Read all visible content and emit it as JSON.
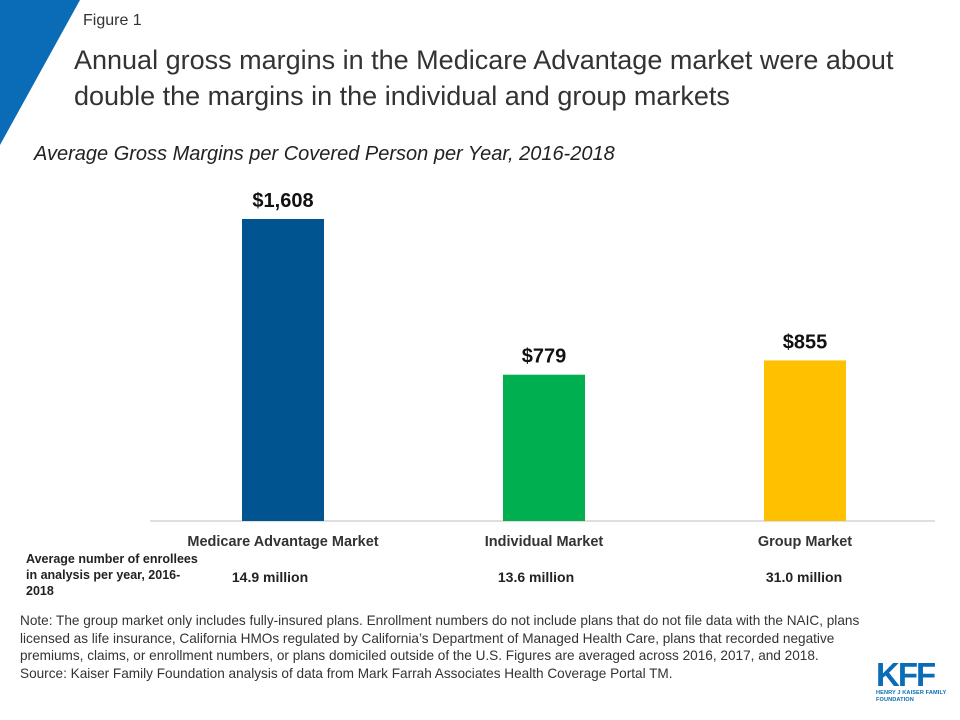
{
  "figure_label": "Figure 1",
  "title": "Annual gross margins in the Medicare Advantage market were about double the margins in the individual and group markets",
  "colors": {
    "accent": "#0a6cb6",
    "medicare": "#00548f",
    "individual": "#00b050",
    "group": "#ffc000"
  },
  "chart_data": {
    "type": "bar",
    "title": "Average Gross Margins per Covered Person per Year, 2016-2018",
    "categories": [
      "Medicare Advantage Market",
      "Individual Market",
      "Group Market"
    ],
    "values": [
      1608,
      779,
      855
    ],
    "value_labels": [
      "$1,608",
      "$779",
      "$855"
    ],
    "colors": [
      "#00548f",
      "#00b050",
      "#ffc000"
    ],
    "ylim": [
      0,
      1900
    ],
    "grid": false
  },
  "enrollees": {
    "label": "Average number of enrollees in analysis per year, 2016-2018",
    "values": [
      "14.9 million",
      "13.6 million",
      "31.0 million"
    ]
  },
  "notes": {
    "note": "Note: The group market only includes fully-insured  plans. Enrollment numbers do not include plans that do not file data with the NAIC, plans licensed as life insurance, California HMOs regulated by California’s Department of Managed Health Care, plans that recorded negative premiums, claims, or enrollment numbers, or plans domiciled outside of the U.S. Figures are averaged across 2016, 2017, and 2018.",
    "source": "Source: Kaiser Family Foundation analysis of data from Mark Farrah Associates Health Coverage Portal TM."
  },
  "logo": {
    "text": "KFF",
    "subtext": "HENRY J KAISER FAMILY FOUNDATION"
  }
}
